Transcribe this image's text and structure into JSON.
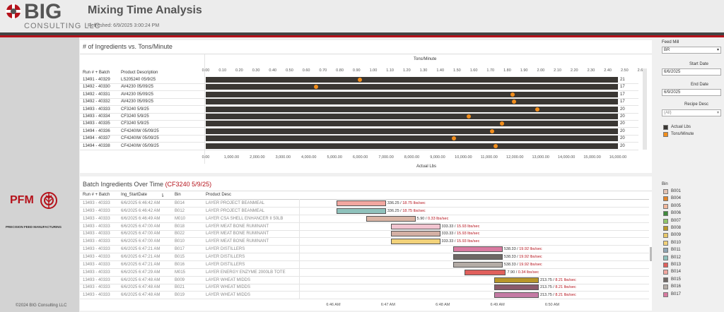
{
  "header": {
    "logo_big": "BIG",
    "logo_sub": "CONSULTING LLC",
    "title": "Mixing Time Analysis",
    "refreshed": "Refreshed: 6/9/2025 3:00:24 PM"
  },
  "sidebar": {
    "pfm": "PFM",
    "pfm_sub": "PRECISION FEED MANUFACTURING",
    "copyright": "©2024 BIG Consulting LLC"
  },
  "filters": {
    "feed_mill_label": "Feed Mill",
    "feed_mill_value": "BR",
    "start_label": "Start Date",
    "start_value": "6/6/2025",
    "end_label": "End Date",
    "end_value": "6/9/2025",
    "recipe_label": "Recipe Desc",
    "recipe_value": "(All)"
  },
  "legend_top": {
    "items": [
      {
        "label": "Actual Lbs",
        "color": "#3a3733"
      },
      {
        "label": "Tons/Minute",
        "color": "#f28e1c"
      }
    ]
  },
  "bin_legend": {
    "title": "Bin",
    "items": [
      {
        "label": "B001",
        "color": "#e4c3b4"
      },
      {
        "label": "B004",
        "color": "#e3852a"
      },
      {
        "label": "B005",
        "color": "#f2b89c"
      },
      {
        "label": "B006",
        "color": "#3f8a3c"
      },
      {
        "label": "B007",
        "color": "#8fc46a"
      },
      {
        "label": "B008",
        "color": "#b8962a"
      },
      {
        "label": "B009",
        "color": "#e8c86a"
      },
      {
        "label": "B010",
        "color": "#f2d27a"
      },
      {
        "label": "B011",
        "color": "#8fa6b4"
      },
      {
        "label": "B012",
        "color": "#8fc2bc"
      },
      {
        "label": "B013",
        "color": "#e0605c"
      },
      {
        "label": "B014",
        "color": "#f2a7a0"
      },
      {
        "label": "B015",
        "color": "#6e6864"
      },
      {
        "label": "B016",
        "color": "#b4aca6"
      },
      {
        "label": "B017",
        "color": "#d97aa0"
      }
    ]
  },
  "top_panel": {
    "title": "# of Ingredients vs. Tons/Minute",
    "col_run": "Run # + Batch",
    "col_desc": "Product Description",
    "axis_top_title": "Tons/Minute",
    "axis_bottom_title": "Actual Lbs"
  },
  "chart_data": [
    {
      "type": "bar",
      "title": "# of Ingredients vs. Tons/Minute",
      "categories": [
        "13491 - 40329 | LS205240 05/9/25",
        "13492 - 40330 | AV4230 05/09/25",
        "13492 - 40331 | AV4230 05/09/25",
        "13492 - 40332 | AV4230 05/09/25",
        "13493 - 40333 | CF3240 5/9/25",
        "13493 - 40334 | CF3240 5/9/25",
        "13493 - 40335 | CF3240 5/9/25",
        "13494 - 40336 | CF4240IW 05/09/25",
        "13494 - 40337 | CF4240IW 05/09/25",
        "13494 - 40338 | CF4240IW 05/09/25"
      ],
      "rows": [
        {
          "run": "13491 - 40329",
          "desc": "LS205240 05/9/25",
          "count": "21",
          "actual_lbs": 16000,
          "tons_per_min": 0.92
        },
        {
          "run": "13492 - 40330",
          "desc": "AV4230 05/09/25",
          "count": "17",
          "actual_lbs": 16000,
          "tons_per_min": 0.66
        },
        {
          "run": "13492 - 40331",
          "desc": "AV4230 05/09/25",
          "count": "17",
          "actual_lbs": 16000,
          "tons_per_min": 1.83
        },
        {
          "run": "13492 - 40332",
          "desc": "AV4230 05/09/25",
          "count": "17",
          "actual_lbs": 16000,
          "tons_per_min": 1.84
        },
        {
          "run": "13493 - 40333",
          "desc": "CF3240 5/9/25",
          "count": "20",
          "actual_lbs": 16000,
          "tons_per_min": 1.98
        },
        {
          "run": "13493 - 40334",
          "desc": "CF3240 5/9/25",
          "count": "20",
          "actual_lbs": 16000,
          "tons_per_min": 1.57
        },
        {
          "run": "13493 - 40335",
          "desc": "CF3240 5/9/25",
          "count": "20",
          "actual_lbs": 16000,
          "tons_per_min": 1.77
        },
        {
          "run": "13494 - 40336",
          "desc": "CF4240IW 05/09/25",
          "count": "20",
          "actual_lbs": 16000,
          "tons_per_min": 1.71
        },
        {
          "run": "13494 - 40337",
          "desc": "CF4240IW 05/09/25",
          "count": "20",
          "actual_lbs": 16000,
          "tons_per_min": 1.48
        },
        {
          "run": "13494 - 40338",
          "desc": "CF4240IW 05/09/25",
          "count": "20",
          "actual_lbs": 16000,
          "tons_per_min": 1.73
        }
      ],
      "x_top_ticks": [
        "0.00",
        "0.10",
        "0.20",
        "0.30",
        "0.40",
        "0.50",
        "0.60",
        "0.70",
        "0.80",
        "0.90",
        "1.00",
        "1.10",
        "1.20",
        "1.30",
        "1.40",
        "1.50",
        "1.60",
        "1.70",
        "1.80",
        "1.90",
        "2.00",
        "2.10",
        "2.20",
        "2.30",
        "2.40",
        "2.50",
        "2.60"
      ],
      "x_bottom_ticks": [
        "0.00",
        "1,000.00",
        "2,000.00",
        "3,000.00",
        "4,000.00",
        "5,000.00",
        "6,000.00",
        "7,000.00",
        "8,000.00",
        "9,000.00",
        "10,000.00",
        "11,000.00",
        "12,000.00",
        "13,000.00",
        "14,000.00",
        "15,000.00",
        "16,000.00"
      ],
      "x_top_range": [
        0,
        2.6
      ],
      "x_bottom_range": [
        0,
        16000
      ],
      "xlabel": "Actual Lbs",
      "x2label": "Tons/Minute"
    },
    {
      "type": "bar",
      "title": "Batch Ingredients Over Time",
      "title_highlight": "(CF3240 5/9/25)",
      "columns": {
        "run": "Run # + Batch",
        "start": "Ing_StartDate",
        "bin": "Bin",
        "desc": "Product Desc"
      },
      "rows": [
        {
          "run": "13493 - 40333",
          "start": "6/6/2025 6:46:42 AM",
          "bin": "B014",
          "desc": "LAYER PROJECT BEANMEAL",
          "lbs": "336.25",
          "rate": "18.75 lbs/sec",
          "t0": 6.767,
          "t1": 6.797
        },
        {
          "run": "13493 - 40333",
          "start": "6/6/2025 6:46:42 AM",
          "bin": "B012",
          "desc": "LAYER PROJECT BEANMEAL",
          "lbs": "336.25",
          "rate": "18.75 lbs/sec",
          "t0": 6.767,
          "t1": 6.797
        },
        {
          "run": "13493 - 40333",
          "start": "6/6/2025 6:46:49 AM",
          "bin": "M010",
          "desc": "LAYER CSA SHELL ENHANCER II 50LB",
          "lbs": "5.90",
          "rate": "0.33 lbs/sec",
          "t0": 6.785,
          "t1": 6.815
        },
        {
          "run": "13493 - 40333",
          "start": "6/6/2025 6:47:00 AM",
          "bin": "B018",
          "desc": "LAYER MEAT BONE RUMINANT",
          "lbs": "333.33",
          "rate": "15.93 lbs/sec",
          "t0": 6.8,
          "t1": 6.83
        },
        {
          "run": "13493 - 40333",
          "start": "6/6/2025 6:47:00 AM",
          "bin": "B022",
          "desc": "LAYER MEAT BONE RUMINANT",
          "lbs": "333.33",
          "rate": "15.93 lbs/sec",
          "t0": 6.8,
          "t1": 6.83
        },
        {
          "run": "13493 - 40333",
          "start": "6/6/2025 6:47:00 AM",
          "bin": "B010",
          "desc": "LAYER MEAT BONE RUMINANT",
          "lbs": "333.33",
          "rate": "15.93 lbs/sec",
          "t0": 6.8,
          "t1": 6.83
        },
        {
          "run": "13493 - 40333",
          "start": "6/6/2025 6:47:21 AM",
          "bin": "B017",
          "desc": "LAYER DISTILLERS",
          "lbs": "538.33",
          "rate": "19.92 lbs/sec",
          "t0": 6.838,
          "t1": 6.868
        },
        {
          "run": "13493 - 40333",
          "start": "6/6/2025 6:47:21 AM",
          "bin": "B015",
          "desc": "LAYER DISTILLERS",
          "lbs": "538.33",
          "rate": "19.92 lbs/sec",
          "t0": 6.838,
          "t1": 6.868
        },
        {
          "run": "13493 - 40333",
          "start": "6/6/2025 6:47:21 AM",
          "bin": "B016",
          "desc": "LAYER DISTILLERS",
          "lbs": "538.33",
          "rate": "19.92 lbs/sec",
          "t0": 6.838,
          "t1": 6.868
        },
        {
          "run": "13493 - 40333",
          "start": "6/6/2025 6:47:29 AM",
          "bin": "M015",
          "desc": "LAYER ENERGY ENZYME 2000LB TOTE",
          "lbs": "7.90",
          "rate": "0.34 lbs/sec",
          "t0": 6.845,
          "t1": 6.87
        },
        {
          "run": "13493 - 40333",
          "start": "6/6/2025 6:47:48 AM",
          "bin": "B009",
          "desc": "LAYER WHEAT MIDDS",
          "lbs": "213.75",
          "rate": "8.21 lbs/sec",
          "t0": 6.863,
          "t1": 6.89
        },
        {
          "run": "13493 - 40333",
          "start": "6/6/2025 6:47:48 AM",
          "bin": "B021",
          "desc": "LAYER WHEAT MIDDS",
          "lbs": "213.75",
          "rate": "8.21 lbs/sec",
          "t0": 6.863,
          "t1": 6.89
        },
        {
          "run": "13493 - 40333",
          "start": "6/6/2025 6:47:48 AM",
          "bin": "B019",
          "desc": "LAYER WHEAT MIDDS",
          "lbs": "213.75",
          "rate": "8.21 lbs/sec",
          "t0": 6.863,
          "t1": 6.89
        }
      ],
      "bar_colors": [
        "#f2a7a0",
        "#8fc2bc",
        "#d9b4a4",
        "#f2c4d0",
        "#d4b0a4",
        "#f2d27a",
        "#d97aa0",
        "#6e6864",
        "#b4aca6",
        "#e0605c",
        "#b8962a",
        "#8a5a6a",
        "#c47aa4"
      ],
      "x_ticks": [
        "6:46 AM",
        "6:47 AM",
        "6:48 AM",
        "6:49 AM",
        "6:50 AM"
      ]
    }
  ],
  "bottom_panel": {
    "title": "Batch Ingredients Over Time ",
    "title_highlight": "(CF3240 5/9/25)",
    "col_run": "Run # + Batch",
    "col_start": "Ing_StartDate",
    "col_bin": "Bin",
    "col_desc": "Product Desc"
  }
}
